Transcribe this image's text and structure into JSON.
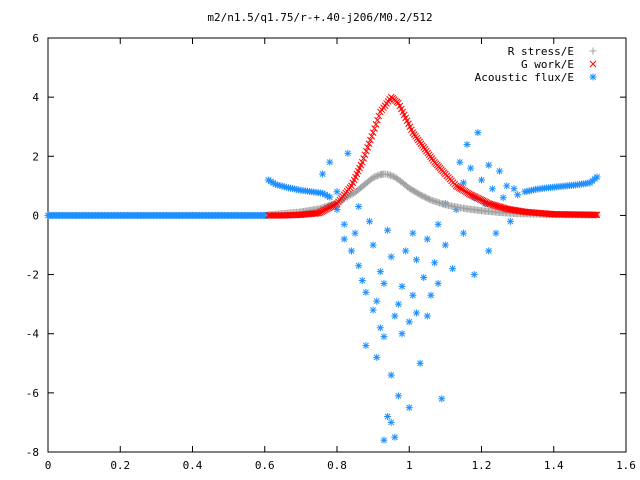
{
  "chart_data": {
    "type": "scatter",
    "title": "m2/n1.5/q1.75/r-+.40-j206/M0.2/512",
    "xlabel": "",
    "ylabel": "",
    "xlim": [
      0,
      1.6
    ],
    "ylim": [
      -8,
      6
    ],
    "x_ticks": [
      "0",
      "0.2",
      "0.4",
      "0.6",
      "0.8",
      "1",
      "1.2",
      "1.4",
      "1.6"
    ],
    "y_ticks": [
      "6",
      "4",
      "2",
      "0",
      "-2",
      "-4",
      "-6",
      "-8"
    ],
    "grid": false,
    "legend_position": "top-right",
    "series": [
      {
        "name": "R stress/E",
        "marker": "+",
        "color": "#a0a0a0",
        "x_range": [
          0.61,
          1.52
        ],
        "peak": {
          "x": 0.93,
          "y": 1.4
        },
        "points": [
          [
            0.61,
            0.02
          ],
          [
            0.65,
            0.06
          ],
          [
            0.7,
            0.12
          ],
          [
            0.75,
            0.22
          ],
          [
            0.8,
            0.42
          ],
          [
            0.85,
            0.78
          ],
          [
            0.88,
            1.08
          ],
          [
            0.9,
            1.28
          ],
          [
            0.92,
            1.38
          ],
          [
            0.93,
            1.4
          ],
          [
            0.94,
            1.39
          ],
          [
            0.96,
            1.3
          ],
          [
            0.98,
            1.12
          ],
          [
            1.0,
            0.92
          ],
          [
            1.03,
            0.7
          ],
          [
            1.06,
            0.52
          ],
          [
            1.1,
            0.36
          ],
          [
            1.15,
            0.24
          ],
          [
            1.2,
            0.16
          ],
          [
            1.25,
            0.1
          ],
          [
            1.3,
            0.06
          ],
          [
            1.4,
            0.03
          ],
          [
            1.52,
            0.01
          ]
        ]
      },
      {
        "name": "G work/E",
        "marker": "x",
        "color": "#ff0000",
        "x_range": [
          0.61,
          1.52
        ],
        "peak": {
          "x": 0.95,
          "y": 4.0
        },
        "points": [
          [
            0.61,
            0.0
          ],
          [
            0.65,
            0.0
          ],
          [
            0.7,
            0.02
          ],
          [
            0.75,
            0.08
          ],
          [
            0.8,
            0.4
          ],
          [
            0.84,
            1.0
          ],
          [
            0.87,
            1.8
          ],
          [
            0.9,
            2.8
          ],
          [
            0.92,
            3.5
          ],
          [
            0.95,
            4.0
          ],
          [
            0.97,
            3.8
          ],
          [
            0.99,
            3.3
          ],
          [
            1.01,
            2.8
          ],
          [
            1.04,
            2.3
          ],
          [
            1.07,
            1.8
          ],
          [
            1.1,
            1.4
          ],
          [
            1.13,
            1.0
          ],
          [
            1.17,
            0.7
          ],
          [
            1.22,
            0.4
          ],
          [
            1.27,
            0.22
          ],
          [
            1.32,
            0.12
          ],
          [
            1.4,
            0.04
          ],
          [
            1.52,
            0.02
          ]
        ]
      },
      {
        "name": "Acoustic flux/E",
        "marker": "*",
        "color": "#1e90ff",
        "flat_segment": {
          "x": [
            0,
            0.61
          ],
          "y": 0
        },
        "left_branch": [
          [
            0.61,
            1.2
          ],
          [
            0.63,
            1.05
          ],
          [
            0.66,
            0.95
          ],
          [
            0.7,
            0.85
          ],
          [
            0.73,
            0.8
          ],
          [
            0.76,
            0.75
          ],
          [
            0.78,
            0.62
          ]
        ],
        "right_branch": [
          [
            1.32,
            0.8
          ],
          [
            1.35,
            0.88
          ],
          [
            1.38,
            0.93
          ],
          [
            1.42,
            0.98
          ],
          [
            1.46,
            1.03
          ],
          [
            1.5,
            1.1
          ],
          [
            1.52,
            1.3
          ]
        ],
        "scatter_points": [
          [
            0.76,
            1.4
          ],
          [
            0.78,
            1.8
          ],
          [
            0.8,
            0.8
          ],
          [
            0.8,
            0.2
          ],
          [
            0.82,
            -0.3
          ],
          [
            0.82,
            -0.8
          ],
          [
            0.83,
            2.1
          ],
          [
            0.84,
            -1.2
          ],
          [
            0.85,
            -0.6
          ],
          [
            0.86,
            0.3
          ],
          [
            0.86,
            -1.7
          ],
          [
            0.87,
            -2.2
          ],
          [
            0.88,
            -2.6
          ],
          [
            0.88,
            -4.4
          ],
          [
            0.89,
            -0.2
          ],
          [
            0.9,
            -1.0
          ],
          [
            0.9,
            -3.2
          ],
          [
            0.91,
            -2.9
          ],
          [
            0.91,
            -4.8
          ],
          [
            0.92,
            -1.9
          ],
          [
            0.92,
            -3.8
          ],
          [
            0.93,
            -2.3
          ],
          [
            0.93,
            -4.1
          ],
          [
            0.93,
            -7.6
          ],
          [
            0.94,
            -6.8
          ],
          [
            0.94,
            -0.5
          ],
          [
            0.95,
            -1.4
          ],
          [
            0.95,
            -5.4
          ],
          [
            0.95,
            -7.0
          ],
          [
            0.96,
            -3.4
          ],
          [
            0.96,
            -7.5
          ],
          [
            0.97,
            -6.1
          ],
          [
            0.97,
            -3.0
          ],
          [
            0.98,
            -4.0
          ],
          [
            0.98,
            -2.4
          ],
          [
            0.99,
            -1.2
          ],
          [
            1.0,
            -3.6
          ],
          [
            1.0,
            -6.5
          ],
          [
            1.01,
            -2.7
          ],
          [
            1.01,
            -0.6
          ],
          [
            1.02,
            -3.3
          ],
          [
            1.02,
            -1.5
          ],
          [
            1.03,
            -5.0
          ],
          [
            1.04,
            -2.1
          ],
          [
            1.05,
            -3.4
          ],
          [
            1.05,
            -0.8
          ],
          [
            1.06,
            -2.7
          ],
          [
            1.07,
            -1.6
          ],
          [
            1.08,
            -0.3
          ],
          [
            1.08,
            -2.3
          ],
          [
            1.09,
            -6.2
          ],
          [
            1.1,
            0.4
          ],
          [
            1.1,
            -1.0
          ],
          [
            1.12,
            -1.8
          ],
          [
            1.13,
            0.2
          ],
          [
            1.14,
            1.8
          ],
          [
            1.15,
            -0.6
          ],
          [
            1.15,
            1.1
          ],
          [
            1.16,
            2.4
          ],
          [
            1.17,
            1.6
          ],
          [
            1.18,
            0.6
          ],
          [
            1.18,
            -2.0
          ],
          [
            1.19,
            2.8
          ],
          [
            1.2,
            1.2
          ],
          [
            1.21,
            0.4
          ],
          [
            1.22,
            -1.2
          ],
          [
            1.22,
            1.7
          ],
          [
            1.23,
            0.9
          ],
          [
            1.24,
            -0.6
          ],
          [
            1.25,
            1.5
          ],
          [
            1.26,
            0.6
          ],
          [
            1.27,
            1.0
          ],
          [
            1.28,
            -0.2
          ],
          [
            1.29,
            0.9
          ],
          [
            1.3,
            0.7
          ]
        ]
      }
    ]
  }
}
